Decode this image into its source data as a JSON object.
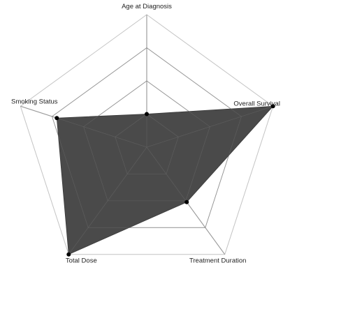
{
  "chart_data": {
    "type": "radar",
    "axes": [
      "Age at Diagnosis",
      "Overall Survival",
      "Treatment Duration",
      "Total Dose",
      "Smoking Status"
    ],
    "rlim": [
      0,
      4
    ],
    "grid_levels": 4,
    "series": [
      {
        "values": [
          1.0,
          4.0,
          2.05,
          4.0,
          2.85
        ]
      }
    ],
    "colors": {
      "fill": "#4a4a4a",
      "grid": "#c4c4c4",
      "point": "#000000"
    }
  }
}
